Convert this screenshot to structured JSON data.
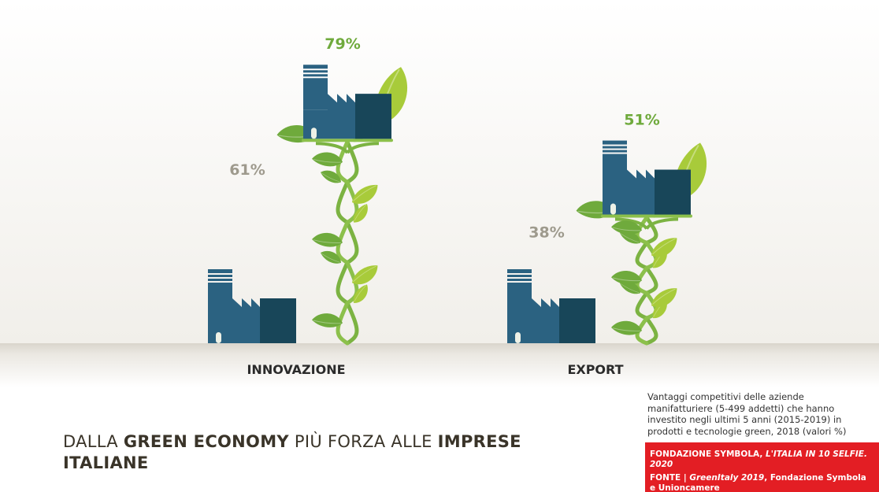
{
  "chart_data": {
    "type": "bar",
    "categories": [
      "INNOVAZIONE",
      "EXPORT"
    ],
    "series": [
      {
        "values": [
          61,
          38
        ],
        "color": "#9e9a8d",
        "icon": "factory-icon"
      },
      {
        "values": [
          79,
          51
        ],
        "color": "#6faa3c",
        "icon": "factory-plant-icon"
      }
    ],
    "value_labels": [
      [
        "61%",
        "38%"
      ],
      [
        "79%",
        "51%"
      ]
    ]
  },
  "headline": {
    "part1": "DALLA ",
    "bold1": "GREEN ECONOMY",
    "part2": " PIÙ FORZA ALLE ",
    "bold2": "IMPRESE ITALIANE"
  },
  "description": "Vantaggi competitivi delle aziende manifatturiere (5-499 addetti) che hanno investito negli ultimi 5 anni (2015-2019) in prodotti e tecnologie green, 2018 (valori %)",
  "credit": {
    "line1_prefix": "FONDAZIONE SYMBOLA, ",
    "line1_title": "L'ITALIA IN 10 SELFIE. 2020",
    "line2_label": "FONTE | ",
    "line2_title": "GreenItaly 2019",
    "line2_rest": ", Fondazione Symbola e Unioncamere"
  },
  "colors": {
    "factory": "#2b6281",
    "factory_dark": "#184659",
    "leaf_light": "#a8cb3a",
    "leaf_dark": "#6faa3c",
    "stem": "#7cb342",
    "label_grey": "#9e9a8d",
    "label_green": "#6faa3c",
    "ground": "#e8e5de",
    "credit_bg": "#e31e24"
  }
}
